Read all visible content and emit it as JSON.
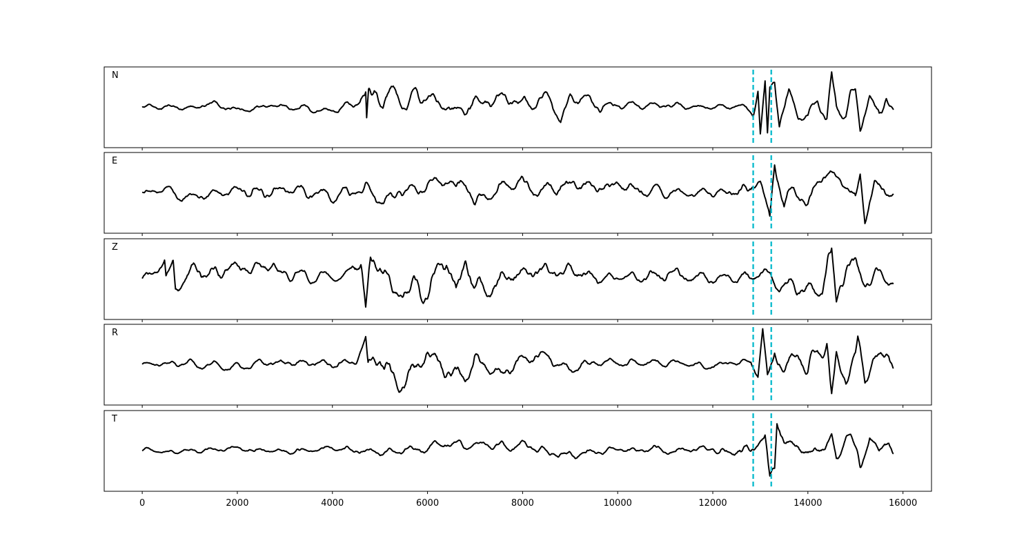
{
  "chart_data": {
    "type": "line",
    "title": "",
    "xlabel": "",
    "ylabel": "",
    "xlim": [
      -800,
      16600
    ],
    "xticks": [
      0,
      2000,
      4000,
      6000,
      8000,
      10000,
      12000,
      14000,
      16000
    ],
    "xtick_labels": [
      "0",
      "2000",
      "4000",
      "6000",
      "8000",
      "10000",
      "12000",
      "14000",
      "16000"
    ],
    "grid": false,
    "line_color": "#000000",
    "marker_color": "#17becf",
    "markers": [
      12850,
      13230
    ],
    "x_start": 0,
    "x_end": 15800,
    "panels": [
      {
        "label": "N",
        "ylim": [
          -1.15,
          1.15
        ],
        "keypoints": [
          [
            0,
            0
          ],
          [
            1000,
            0
          ],
          [
            1500,
            0.1
          ],
          [
            2000,
            -0.1
          ],
          [
            3000,
            0.08
          ],
          [
            4000,
            -0.1
          ],
          [
            4500,
            0.1
          ],
          [
            4700,
            0.25
          ],
          [
            4720,
            -0.6
          ],
          [
            4760,
            0.3
          ],
          [
            5000,
            0.35
          ],
          [
            5400,
            0.45
          ],
          [
            6000,
            0.3
          ],
          [
            6500,
            -0.3
          ],
          [
            7000,
            0.2
          ],
          [
            7500,
            0.35
          ],
          [
            8000,
            0.1
          ],
          [
            8500,
            0.3
          ],
          [
            8800,
            -0.4
          ],
          [
            9000,
            0.3
          ],
          [
            9500,
            0.15
          ],
          [
            10000,
            0.05
          ],
          [
            11000,
            0.05
          ],
          [
            12000,
            0
          ],
          [
            12700,
            0
          ],
          [
            12850,
            -0.25
          ],
          [
            12950,
            0.55
          ],
          [
            13000,
            -0.9
          ],
          [
            13100,
            0.8
          ],
          [
            13150,
            -0.95
          ],
          [
            13200,
            0.65
          ],
          [
            13300,
            0.95
          ],
          [
            13400,
            -0.5
          ],
          [
            13600,
            0.5
          ],
          [
            13800,
            -0.2
          ],
          [
            14000,
            -0.4
          ],
          [
            14200,
            0.3
          ],
          [
            14400,
            -0.4
          ],
          [
            14500,
            0.9
          ],
          [
            14600,
            -0.1
          ],
          [
            14800,
            -0.3
          ],
          [
            14900,
            0.5
          ],
          [
            15000,
            0.6
          ],
          [
            15100,
            -0.8
          ],
          [
            15300,
            0.35
          ],
          [
            15500,
            -0.3
          ],
          [
            15650,
            0.4
          ],
          [
            15800,
            0
          ]
        ],
        "noise": [
          [
            0,
            0.1
          ],
          [
            3000,
            0.1
          ],
          [
            4400,
            0.12
          ],
          [
            4800,
            0.35
          ],
          [
            6000,
            0.25
          ],
          [
            9500,
            0.2
          ],
          [
            10000,
            0.12
          ],
          [
            12800,
            0.08
          ],
          [
            13400,
            0.2
          ],
          [
            15800,
            0.2
          ]
        ]
      },
      {
        "label": "E",
        "ylim": [
          -1.15,
          1.15
        ],
        "keypoints": [
          [
            0,
            0
          ],
          [
            600,
            0.1
          ],
          [
            800,
            -0.15
          ],
          [
            2000,
            0.1
          ],
          [
            3000,
            0.1
          ],
          [
            4000,
            -0.1
          ],
          [
            4800,
            0.15
          ],
          [
            5000,
            -0.3
          ],
          [
            6000,
            0.3
          ],
          [
            6800,
            0.35
          ],
          [
            7000,
            -0.35
          ],
          [
            7500,
            0.3
          ],
          [
            8000,
            0.2
          ],
          [
            9000,
            0.2
          ],
          [
            10000,
            0.2
          ],
          [
            11000,
            0
          ],
          [
            12000,
            0
          ],
          [
            12800,
            0.1
          ],
          [
            13000,
            0.5
          ],
          [
            13200,
            -0.95
          ],
          [
            13300,
            1.0
          ],
          [
            13500,
            -0.4
          ],
          [
            13700,
            0.3
          ],
          [
            14000,
            -0.4
          ],
          [
            14200,
            0.5
          ],
          [
            14500,
            0.55
          ],
          [
            14800,
            0.3
          ],
          [
            15000,
            -0.3
          ],
          [
            15100,
            0.65
          ],
          [
            15200,
            -0.85
          ],
          [
            15400,
            0.2
          ],
          [
            15600,
            0.2
          ],
          [
            15800,
            -0.2
          ]
        ],
        "noise": [
          [
            0,
            0.1
          ],
          [
            500,
            0.12
          ],
          [
            2000,
            0.18
          ],
          [
            4000,
            0.22
          ],
          [
            7000,
            0.25
          ],
          [
            10000,
            0.22
          ],
          [
            11500,
            0.12
          ],
          [
            12500,
            0.2
          ],
          [
            13500,
            0.22
          ],
          [
            15800,
            0.22
          ]
        ]
      },
      {
        "label": "Z",
        "ylim": [
          -1.15,
          1.15
        ],
        "keypoints": [
          [
            0,
            0
          ],
          [
            470,
            0.45
          ],
          [
            500,
            -0.2
          ],
          [
            650,
            0.45
          ],
          [
            700,
            -0.3
          ],
          [
            1000,
            0.2
          ],
          [
            2000,
            0.3
          ],
          [
            2600,
            0.35
          ],
          [
            3000,
            0.2
          ],
          [
            4000,
            0
          ],
          [
            4600,
            0.5
          ],
          [
            4700,
            -0.95
          ],
          [
            4800,
            0.5
          ],
          [
            5000,
            0.45
          ],
          [
            5400,
            -0.5
          ],
          [
            6000,
            -0.3
          ],
          [
            6400,
            0.7
          ],
          [
            6600,
            -0.5
          ],
          [
            6800,
            0.6
          ],
          [
            7000,
            -0.4
          ],
          [
            8000,
            0.2
          ],
          [
            9000,
            0.15
          ],
          [
            10000,
            0
          ],
          [
            11000,
            0.15
          ],
          [
            12000,
            0
          ],
          [
            13000,
            0.1
          ],
          [
            13500,
            -0.1
          ],
          [
            14000,
            -0.3
          ],
          [
            14300,
            -0.5
          ],
          [
            14500,
            1.0
          ],
          [
            14600,
            -0.85
          ],
          [
            14800,
            0.3
          ],
          [
            15000,
            0.45
          ],
          [
            15200,
            -0.3
          ],
          [
            15500,
            0.15
          ],
          [
            15800,
            -0.15
          ]
        ],
        "noise": [
          [
            0,
            0.15
          ],
          [
            400,
            0.15
          ],
          [
            500,
            0.25
          ],
          [
            1000,
            0.3
          ],
          [
            3000,
            0.2
          ],
          [
            4300,
            0.12
          ],
          [
            4500,
            0.35
          ],
          [
            7000,
            0.35
          ],
          [
            9500,
            0.2
          ],
          [
            10000,
            0.12
          ],
          [
            11000,
            0.22
          ],
          [
            12000,
            0.15
          ],
          [
            13000,
            0.18
          ],
          [
            14200,
            0.35
          ],
          [
            15800,
            0.2
          ]
        ]
      },
      {
        "label": "R",
        "ylim": [
          -1.15,
          1.15
        ],
        "keypoints": [
          [
            0,
            0
          ],
          [
            1000,
            0.05
          ],
          [
            2000,
            -0.1
          ],
          [
            3000,
            0.1
          ],
          [
            4000,
            0
          ],
          [
            4500,
            0.1
          ],
          [
            4700,
            0.6
          ],
          [
            4750,
            -0.3
          ],
          [
            5000,
            0.3
          ],
          [
            5400,
            -0.5
          ],
          [
            6000,
            0.3
          ],
          [
            6700,
            -0.3
          ],
          [
            7000,
            0.2
          ],
          [
            7500,
            -0.3
          ],
          [
            8000,
            0.2
          ],
          [
            8500,
            0.3
          ],
          [
            9000,
            -0.2
          ],
          [
            9500,
            0.1
          ],
          [
            10000,
            0
          ],
          [
            11000,
            0.05
          ],
          [
            12000,
            0
          ],
          [
            12800,
            0.1
          ],
          [
            12950,
            -0.5
          ],
          [
            13050,
            1.0
          ],
          [
            13150,
            -0.5
          ],
          [
            13300,
            0.55
          ],
          [
            13500,
            -0.3
          ],
          [
            13800,
            0.4
          ],
          [
            14000,
            -0.3
          ],
          [
            14200,
            0.6
          ],
          [
            14400,
            0.7
          ],
          [
            14500,
            -1.0
          ],
          [
            14600,
            0.3
          ],
          [
            14800,
            -0.5
          ],
          [
            15000,
            0.3
          ],
          [
            15050,
            0.85
          ],
          [
            15200,
            -0.4
          ],
          [
            15500,
            0.15
          ],
          [
            15700,
            0.3
          ],
          [
            15800,
            -0.1
          ]
        ],
        "noise": [
          [
            0,
            0.08
          ],
          [
            800,
            0.12
          ],
          [
            4500,
            0.15
          ],
          [
            4800,
            0.35
          ],
          [
            6500,
            0.35
          ],
          [
            7500,
            0.25
          ],
          [
            9500,
            0.15
          ],
          [
            10500,
            0.12
          ],
          [
            12800,
            0.1
          ],
          [
            13400,
            0.28
          ],
          [
            15800,
            0.25
          ]
        ]
      },
      {
        "label": "T",
        "ylim": [
          -1.15,
          1.15
        ],
        "keypoints": [
          [
            0,
            0
          ],
          [
            1000,
            0
          ],
          [
            2000,
            0.05
          ],
          [
            3000,
            -0.05
          ],
          [
            4000,
            0.1
          ],
          [
            5000,
            0
          ],
          [
            6000,
            0
          ],
          [
            6400,
            0.3
          ],
          [
            7000,
            0.2
          ],
          [
            8000,
            0.1
          ],
          [
            9000,
            -0.1
          ],
          [
            10000,
            0
          ],
          [
            11000,
            0.05
          ],
          [
            12000,
            0
          ],
          [
            12800,
            -0.1
          ],
          [
            12950,
            0.3
          ],
          [
            13100,
            0.4
          ],
          [
            13200,
            -0.9
          ],
          [
            13300,
            -0.5
          ],
          [
            13350,
            1.0
          ],
          [
            13500,
            0.3
          ],
          [
            13800,
            0.2
          ],
          [
            14000,
            -0.1
          ],
          [
            14500,
            0.4
          ],
          [
            14600,
            -0.3
          ],
          [
            14800,
            0.35
          ],
          [
            14900,
            0.45
          ],
          [
            15100,
            -0.5
          ],
          [
            15300,
            0.35
          ],
          [
            15500,
            -0.1
          ],
          [
            15700,
            0.3
          ],
          [
            15800,
            -0.1
          ]
        ],
        "noise": [
          [
            0,
            0.08
          ],
          [
            1000,
            0.08
          ],
          [
            4000,
            0.1
          ],
          [
            6000,
            0.15
          ],
          [
            8000,
            0.15
          ],
          [
            10000,
            0.1
          ],
          [
            12000,
            0.12
          ],
          [
            13000,
            0.22
          ],
          [
            15800,
            0.2
          ]
        ]
      }
    ]
  }
}
